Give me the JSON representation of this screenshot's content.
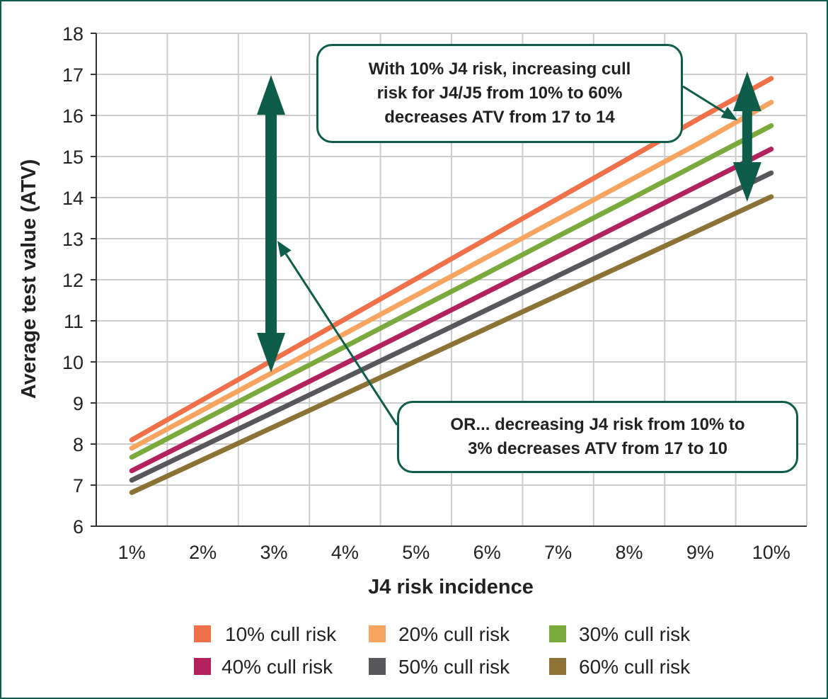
{
  "chart_data": {
    "type": "line",
    "xlabel": "J4 risk incidence",
    "ylabel": "Average test value (ATV)",
    "categories": [
      "1%",
      "2%",
      "3%",
      "4%",
      "5%",
      "6%",
      "7%",
      "8%",
      "9%",
      "10%"
    ],
    "ylim": [
      6,
      18
    ],
    "yticks": [
      6,
      7,
      8,
      9,
      10,
      11,
      12,
      13,
      14,
      15,
      16,
      17,
      18
    ],
    "grid": true,
    "legend_position": "bottom",
    "series": [
      {
        "name": "10% cull risk",
        "color": "#f0704a",
        "values": [
          8.1,
          9.08,
          10.06,
          11.04,
          12.02,
          13.0,
          13.98,
          14.96,
          15.94,
          16.9
        ]
      },
      {
        "name": "20% cull risk",
        "color": "#f6a460",
        "values": [
          7.9,
          8.83,
          9.76,
          10.69,
          11.62,
          12.55,
          13.48,
          14.41,
          15.34,
          16.32
        ]
      },
      {
        "name": "30% cull risk",
        "color": "#7aaa3c",
        "values": [
          7.68,
          8.58,
          9.48,
          10.37,
          11.27,
          12.16,
          13.06,
          13.95,
          14.85,
          15.75
        ]
      },
      {
        "name": "40% cull risk",
        "color": "#b3225f",
        "values": [
          7.35,
          8.22,
          9.09,
          9.96,
          10.83,
          11.7,
          12.57,
          13.44,
          14.31,
          15.18
        ]
      },
      {
        "name": "50% cull risk",
        "color": "#58585c",
        "values": [
          7.12,
          7.95,
          8.78,
          9.61,
          10.44,
          11.27,
          12.1,
          12.93,
          13.76,
          14.6
        ]
      },
      {
        "name": "60% cull risk",
        "color": "#8c7234",
        "values": [
          6.82,
          7.62,
          8.42,
          9.22,
          10.02,
          10.82,
          11.62,
          12.42,
          13.22,
          14.02
        ]
      }
    ],
    "annotations": [
      {
        "text": "With 10% J4 risk, increasing cull risk for J4/J5 from 10% to 60% decreases ATV  from 17 to 14",
        "arrow_range": [
          14,
          17
        ],
        "x": "10%"
      },
      {
        "text": "OR... decreasing J4 risk from 10% to 3% decreases ATV from 17 to 10",
        "arrow_range": [
          10,
          17
        ],
        "x": "3%"
      }
    ],
    "arrow_color": "#0e5c4a",
    "grid_color": "#cccccc"
  },
  "notes": {
    "top_line1": "With 10% J4 risk, increasing cull",
    "top_line2": "risk for J4/J5 from 10% to 60%",
    "top_line3": "decreases ATV  from 17 to 14",
    "bottom_line1": "OR... decreasing J4 risk from 10% to",
    "bottom_line2": "3% decreases ATV from 17 to 10"
  }
}
